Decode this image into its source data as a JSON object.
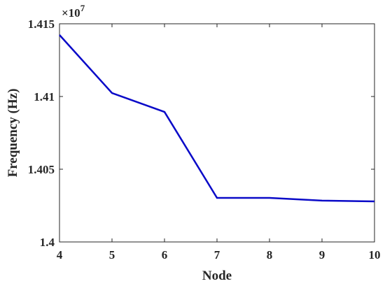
{
  "chart_data": {
    "type": "line",
    "xlabel": "Node",
    "ylabel": "Frequency (Hz)",
    "y_multiplier": {
      "base": "×10",
      "power": "7"
    },
    "x": [
      4,
      5,
      6,
      7,
      8,
      9,
      10
    ],
    "series": [
      {
        "name": "Frequency",
        "color": "#0a0ac8",
        "values": [
          1.41423,
          1.41024,
          1.40894,
          1.40303,
          1.40303,
          1.40284,
          1.40279
        ]
      }
    ],
    "xlim": [
      4,
      10
    ],
    "xticks": [
      4,
      5,
      6,
      7,
      8,
      9,
      10
    ],
    "ylim": [
      1.4,
      1.415
    ],
    "yticks": [
      1.4,
      1.405,
      1.41,
      1.415
    ],
    "grid": false
  }
}
